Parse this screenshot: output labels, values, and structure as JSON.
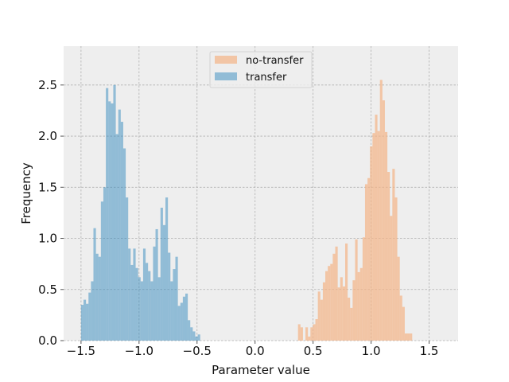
{
  "chart_data": {
    "type": "bar",
    "title": "",
    "xlabel": "Parameter value",
    "ylabel": "Frequency",
    "xlim": [
      -1.65,
      1.75
    ],
    "ylim": [
      0,
      2.88
    ],
    "xticks": [
      -1.5,
      -1.0,
      -0.5,
      0.0,
      0.5,
      1.0,
      1.5
    ],
    "xtick_labels": [
      "−1.5",
      "−1.0",
      "−0.5",
      "0.0",
      "0.5",
      "1.0",
      "1.5"
    ],
    "yticks": [
      0.0,
      0.5,
      1.0,
      1.5,
      2.0,
      2.5
    ],
    "ytick_labels": [
      "0.0",
      "0.5",
      "1.0",
      "1.5",
      "2.0",
      "2.5"
    ],
    "grid": true,
    "legend_position": "top-center",
    "background_color": "#eeeeee",
    "grid_color": "#b0b0b0",
    "bin_width": 0.0214,
    "series": [
      {
        "name": "no-transfer",
        "color": "#f4b486",
        "opacity": 0.7,
        "bin_start": 0.37,
        "values": [
          0.16,
          0.13,
          0.0,
          0.13,
          0.04,
          0.13,
          0.16,
          0.21,
          0.48,
          0.4,
          0.57,
          0.68,
          0.73,
          0.75,
          0.85,
          0.92,
          0.52,
          0.62,
          0.53,
          0.95,
          0.42,
          0.32,
          0.59,
          0.99,
          0.67,
          0.71,
          1.01,
          1.53,
          1.59,
          1.9,
          2.03,
          2.21,
          2.05,
          2.55,
          2.35,
          2.04,
          1.65,
          1.22,
          1.68,
          1.4,
          0.82,
          0.44,
          0.33,
          0.07,
          0.07,
          0.07
        ]
      },
      {
        "name": "transfer",
        "color": "#348abd",
        "opacity": 0.5,
        "bin_start": -1.5,
        "values": [
          0.35,
          0.4,
          0.36,
          0.47,
          0.58,
          1.1,
          0.85,
          0.82,
          1.36,
          1.5,
          2.47,
          2.34,
          2.32,
          2.5,
          2.02,
          2.26,
          2.14,
          1.88,
          1.4,
          0.9,
          0.74,
          0.9,
          0.71,
          0.62,
          0.58,
          0.9,
          0.76,
          0.68,
          0.58,
          0.92,
          1.09,
          0.62,
          1.3,
          1.13,
          1.4,
          0.86,
          0.58,
          0.7,
          0.82,
          0.34,
          0.37,
          0.43,
          0.46,
          0.2,
          0.13,
          0.09,
          0.04,
          0.06
        ]
      }
    ]
  }
}
